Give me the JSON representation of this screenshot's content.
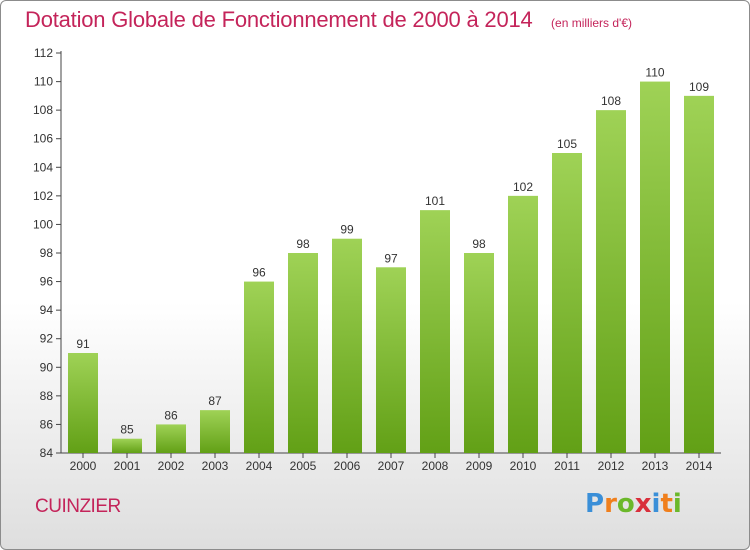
{
  "title": "Dotation Globale de Fonctionnement de 2000 à 2014",
  "subtitle": "(en milliers d'€)",
  "place": "CUINZIER",
  "logo": {
    "text": "Proxiti",
    "letters": [
      "P",
      "r",
      "o",
      "x",
      "i",
      "t",
      "i"
    ],
    "colors": [
      "#3a8fd8",
      "#f07f1c",
      "#6bb82a",
      "#d92f3b",
      "#3a8fd8",
      "#f07f1c",
      "#6bb82a"
    ]
  },
  "colors": {
    "title": "#c4245a",
    "bar_top": "#9fd256",
    "bar_bottom": "#62a016",
    "axis": "#444444",
    "grid": "#e8e8e8"
  },
  "chart_data": {
    "type": "bar",
    "title": "Dotation Globale de Fonctionnement de 2000 à 2014",
    "subtitle": "(en milliers d'€)",
    "categories": [
      "2000",
      "2001",
      "2002",
      "2003",
      "2004",
      "2005",
      "2006",
      "2007",
      "2008",
      "2009",
      "2010",
      "2011",
      "2012",
      "2013",
      "2014"
    ],
    "values": [
      91,
      85,
      86,
      87,
      96,
      98,
      99,
      97,
      101,
      98,
      102,
      105,
      108,
      110,
      109
    ],
    "ylim": [
      84,
      112
    ],
    "yticks": [
      84,
      86,
      88,
      90,
      92,
      94,
      96,
      98,
      100,
      102,
      104,
      106,
      108,
      110,
      112
    ],
    "data_labels": true,
    "grid": false
  }
}
